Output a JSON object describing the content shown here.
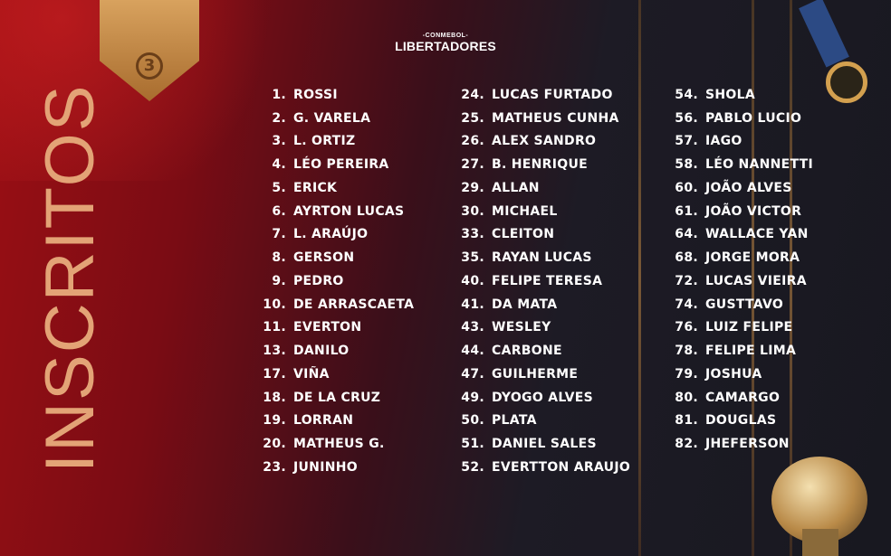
{
  "header": {
    "org": "-CONMEBOL-",
    "competition": "LIBERTADORES"
  },
  "title": "INSCRITOS",
  "badge": {
    "number": "3"
  },
  "colors": {
    "title": "#e3a376",
    "text": "#ffffff",
    "bg_left": "#9b0f14",
    "bg_right": "#181820"
  },
  "columns": [
    [
      {
        "n": "1.",
        "name": "ROSSI"
      },
      {
        "n": "2.",
        "name": "G. VARELA"
      },
      {
        "n": "3.",
        "name": "L. ORTIZ"
      },
      {
        "n": "4.",
        "name": "LÉO PEREIRA"
      },
      {
        "n": "5.",
        "name": "ERICK"
      },
      {
        "n": "6.",
        "name": "AYRTON LUCAS"
      },
      {
        "n": "7.",
        "name": "L. ARAÚJO"
      },
      {
        "n": "8.",
        "name": "GERSON"
      },
      {
        "n": "9.",
        "name": "PEDRO"
      },
      {
        "n": "10.",
        "name": "DE ARRASCAETA"
      },
      {
        "n": "11.",
        "name": "EVERTON"
      },
      {
        "n": "13.",
        "name": "DANILO"
      },
      {
        "n": "17.",
        "name": "VIÑA"
      },
      {
        "n": "18.",
        "name": "DE LA CRUZ"
      },
      {
        "n": "19.",
        "name": "LORRAN"
      },
      {
        "n": "20.",
        "name": "MATHEUS G."
      },
      {
        "n": "23.",
        "name": "JUNINHO"
      }
    ],
    [
      {
        "n": "24.",
        "name": "LUCAS FURTADO"
      },
      {
        "n": "25.",
        "name": "MATHEUS CUNHA"
      },
      {
        "n": "26.",
        "name": "ALEX SANDRO"
      },
      {
        "n": "27.",
        "name": "B. HENRIQUE"
      },
      {
        "n": "29.",
        "name": "ALLAN"
      },
      {
        "n": "30.",
        "name": "MICHAEL"
      },
      {
        "n": "33.",
        "name": "CLEITON"
      },
      {
        "n": "35.",
        "name": "RAYAN LUCAS"
      },
      {
        "n": "40.",
        "name": "FELIPE TERESA"
      },
      {
        "n": "41.",
        "name": "DA MATA"
      },
      {
        "n": "43.",
        "name": "WESLEY"
      },
      {
        "n": "44.",
        "name": "CARBONE"
      },
      {
        "n": "47.",
        "name": "GUILHERME"
      },
      {
        "n": "49.",
        "name": "DYOGO ALVES"
      },
      {
        "n": "50.",
        "name": "PLATA"
      },
      {
        "n": "51.",
        "name": "DANIEL SALES"
      },
      {
        "n": "52.",
        "name": "EVERTTON ARAUJO"
      }
    ],
    [
      {
        "n": "54.",
        "name": "SHOLA"
      },
      {
        "n": "56.",
        "name": "PABLO LUCIO"
      },
      {
        "n": "57.",
        "name": "IAGO"
      },
      {
        "n": "58.",
        "name": "LÉO NANNETTI"
      },
      {
        "n": "60.",
        "name": "JOÃO ALVES"
      },
      {
        "n": "61.",
        "name": "JOÃO VICTOR"
      },
      {
        "n": "64.",
        "name": "WALLACE YAN"
      },
      {
        "n": "68.",
        "name": "JORGE MORA"
      },
      {
        "n": "72.",
        "name": "LUCAS VIEIRA"
      },
      {
        "n": "74.",
        "name": "GUSTTAVO"
      },
      {
        "n": "76.",
        "name": "LUIZ FELIPE"
      },
      {
        "n": "78.",
        "name": "FELIPE LIMA"
      },
      {
        "n": "79.",
        "name": "JOSHUA"
      },
      {
        "n": "80.",
        "name": "CAMARGO"
      },
      {
        "n": "81.",
        "name": "DOUGLAS"
      },
      {
        "n": "82.",
        "name": "JHEFERSON"
      }
    ]
  ]
}
